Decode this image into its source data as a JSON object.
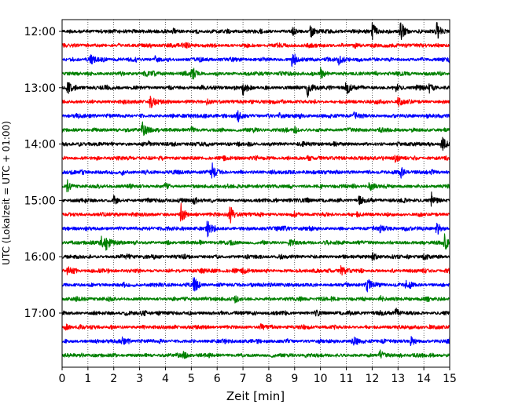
{
  "chart_data": {
    "type": "line",
    "title": "",
    "xlabel": "Zeit  [min]",
    "ylabel": "UTC (Lokalzeit = UTC + 01:00)",
    "xlim": [
      0,
      15
    ],
    "xticks": [
      0,
      1,
      2,
      3,
      4,
      5,
      6,
      7,
      8,
      9,
      10,
      11,
      12,
      13,
      14,
      15
    ],
    "xtick_labels": [
      "0",
      "1",
      "2",
      "3",
      "4",
      "5",
      "6",
      "7",
      "8",
      "9",
      "10",
      "11",
      "12",
      "13",
      "14",
      "15"
    ],
    "ytick_labels": [
      "12:00",
      "13:00",
      "14:00",
      "15:00",
      "16:00",
      "17:00"
    ],
    "grid": "vertical dotted",
    "trace_interval_minutes": 15,
    "trace_count": 24,
    "trace_colors": [
      "#000000",
      "#ff0000",
      "#0000ff",
      "#008000"
    ],
    "traces": [
      {
        "time": "12:00",
        "color": "#000000",
        "events": [
          [
            9.6,
            0.9
          ],
          [
            12.0,
            1.1
          ],
          [
            13.1,
            1.3
          ],
          [
            14.5,
            1.0
          ],
          [
            8.9,
            0.4
          ],
          [
            4.3,
            0.3
          ]
        ]
      },
      {
        "time": "12:15",
        "color": "#ff0000",
        "events": [
          [
            4.8,
            0.3
          ],
          [
            11.3,
            0.3
          ]
        ]
      },
      {
        "time": "12:30",
        "color": "#0000ff",
        "events": [
          [
            1.1,
            0.5
          ],
          [
            3.6,
            0.4
          ],
          [
            8.9,
            1.0
          ],
          [
            10.7,
            0.5
          ],
          [
            15.0,
            0.5
          ]
        ]
      },
      {
        "time": "12:45",
        "color": "#008000",
        "events": [
          [
            5.0,
            1.0
          ],
          [
            10.0,
            0.6
          ],
          [
            3.2,
            0.3
          ]
        ]
      },
      {
        "time": "13:00",
        "color": "#000000",
        "events": [
          [
            0.2,
            0.8
          ],
          [
            7.0,
            0.9
          ],
          [
            9.5,
            1.0
          ],
          [
            11.0,
            0.8
          ],
          [
            12.9,
            0.5
          ],
          [
            13.7,
            0.6
          ],
          [
            14.2,
            0.5
          ]
        ]
      },
      {
        "time": "13:15",
        "color": "#ff0000",
        "events": [
          [
            3.4,
            0.9
          ],
          [
            13.0,
            0.5
          ],
          [
            5.6,
            0.3
          ]
        ]
      },
      {
        "time": "13:30",
        "color": "#0000ff",
        "events": [
          [
            6.8,
            0.6
          ],
          [
            11.3,
            0.4
          ],
          [
            8.4,
            0.3
          ]
        ]
      },
      {
        "time": "13:45",
        "color": "#008000",
        "events": [
          [
            3.1,
            1.0
          ],
          [
            9.0,
            0.4
          ],
          [
            5.0,
            0.3
          ]
        ]
      },
      {
        "time": "14:00",
        "color": "#000000",
        "events": [
          [
            3.3,
            0.4
          ],
          [
            14.7,
            0.8
          ],
          [
            7.2,
            0.3
          ]
        ]
      },
      {
        "time": "14:15",
        "color": "#ff0000",
        "events": [
          [
            9.5,
            0.3
          ],
          [
            12.9,
            0.4
          ]
        ]
      },
      {
        "time": "14:30",
        "color": "#0000ff",
        "events": [
          [
            5.8,
            1.0
          ],
          [
            13.1,
            0.5
          ],
          [
            2.3,
            0.3
          ]
        ]
      },
      {
        "time": "14:45",
        "color": "#008000",
        "events": [
          [
            0.2,
            0.6
          ],
          [
            11.9,
            0.6
          ],
          [
            4.0,
            0.3
          ]
        ]
      },
      {
        "time": "15:00",
        "color": "#000000",
        "events": [
          [
            2.0,
            0.5
          ],
          [
            11.5,
            0.6
          ],
          [
            14.3,
            0.9
          ],
          [
            5.1,
            0.3
          ]
        ]
      },
      {
        "time": "15:15",
        "color": "#ff0000",
        "events": [
          [
            4.6,
            1.2
          ],
          [
            6.5,
            1.0
          ],
          [
            9.0,
            0.3
          ]
        ]
      },
      {
        "time": "15:30",
        "color": "#0000ff",
        "events": [
          [
            5.6,
            1.1
          ],
          [
            14.5,
            0.7
          ],
          [
            12.3,
            0.4
          ],
          [
            8.5,
            0.3
          ]
        ]
      },
      {
        "time": "15:45",
        "color": "#008000",
        "events": [
          [
            1.5,
            0.8
          ],
          [
            1.7,
            0.9
          ],
          [
            8.8,
            0.5
          ],
          [
            14.8,
            0.9
          ]
        ]
      },
      {
        "time": "16:00",
        "color": "#000000",
        "events": [
          [
            2.5,
            0.4
          ],
          [
            12.0,
            0.4
          ],
          [
            14.0,
            0.3
          ]
        ]
      },
      {
        "time": "16:15",
        "color": "#ff0000",
        "events": [
          [
            0.2,
            0.5
          ],
          [
            10.8,
            0.5
          ],
          [
            15.0,
            0.6
          ],
          [
            7.0,
            0.3
          ]
        ]
      },
      {
        "time": "16:30",
        "color": "#0000ff",
        "events": [
          [
            5.1,
            1.4
          ],
          [
            11.8,
            0.7
          ],
          [
            13.3,
            0.5
          ]
        ]
      },
      {
        "time": "16:45",
        "color": "#008000",
        "events": [
          [
            12.3,
            0.4
          ],
          [
            6.7,
            0.3
          ]
        ]
      },
      {
        "time": "17:00",
        "color": "#000000",
        "events": [
          [
            12.9,
            0.6
          ],
          [
            3.1,
            0.3
          ],
          [
            9.8,
            0.3
          ]
        ]
      },
      {
        "time": "17:15",
        "color": "#ff0000",
        "events": [
          [
            0.1,
            0.5
          ],
          [
            7.7,
            0.3
          ]
        ]
      },
      {
        "time": "17:30",
        "color": "#0000ff",
        "events": [
          [
            2.3,
            0.4
          ],
          [
            11.3,
            0.5
          ],
          [
            13.5,
            0.5
          ],
          [
            15.0,
            0.4
          ]
        ]
      },
      {
        "time": "17:45",
        "color": "#008000",
        "events": [
          [
            12.3,
            0.5
          ],
          [
            4.7,
            0.3
          ]
        ]
      }
    ]
  }
}
